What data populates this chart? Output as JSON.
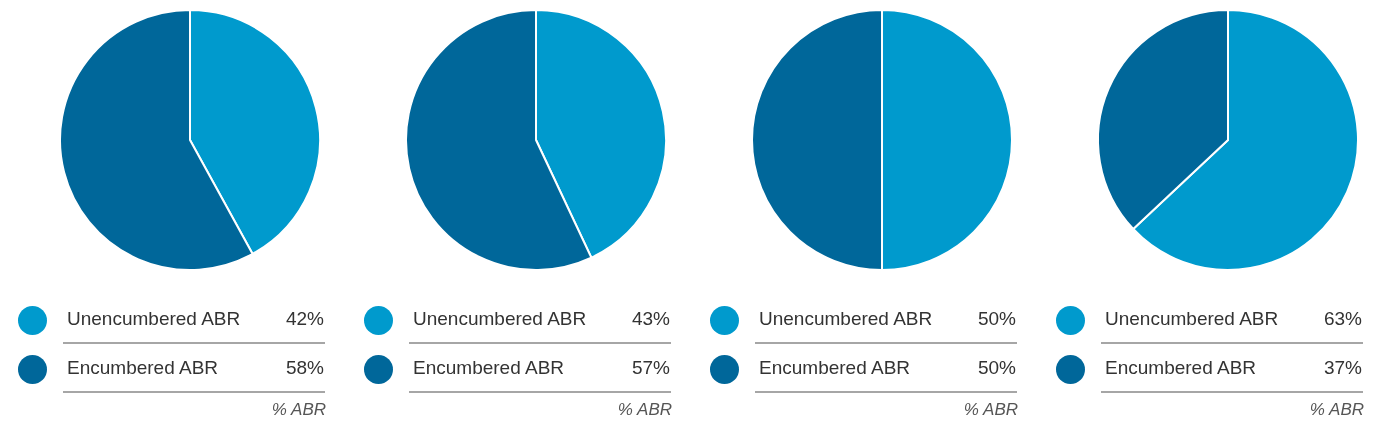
{
  "chart_data": [
    {
      "type": "pie",
      "categories": [
        "Unencumbered ABR",
        "Encumbered ABR"
      ],
      "values": [
        42,
        58
      ],
      "value_labels": [
        "42%",
        "58%"
      ],
      "colors": [
        "#009acd",
        "#00679a"
      ],
      "legend": "bottom",
      "annotations": [
        "% ABR"
      ]
    },
    {
      "type": "pie",
      "categories": [
        "Unencumbered ABR",
        "Encumbered ABR"
      ],
      "values": [
        43,
        57
      ],
      "value_labels": [
        "43%",
        "57%"
      ],
      "colors": [
        "#009acd",
        "#00679a"
      ],
      "legend": "bottom",
      "annotations": [
        "% ABR"
      ]
    },
    {
      "type": "pie",
      "categories": [
        "Unencumbered ABR",
        "Encumbered ABR"
      ],
      "values": [
        50,
        50
      ],
      "value_labels": [
        "50%",
        "50%"
      ],
      "colors": [
        "#009acd",
        "#00679a"
      ],
      "legend": "bottom",
      "annotations": [
        "% ABR"
      ]
    },
    {
      "type": "pie",
      "categories": [
        "Unencumbered ABR",
        "Encumbered ABR"
      ],
      "values": [
        63,
        37
      ],
      "value_labels": [
        "63%",
        "37%"
      ],
      "colors": [
        "#009acd",
        "#00679a"
      ],
      "legend": "bottom",
      "annotations": [
        "% ABR"
      ]
    }
  ]
}
